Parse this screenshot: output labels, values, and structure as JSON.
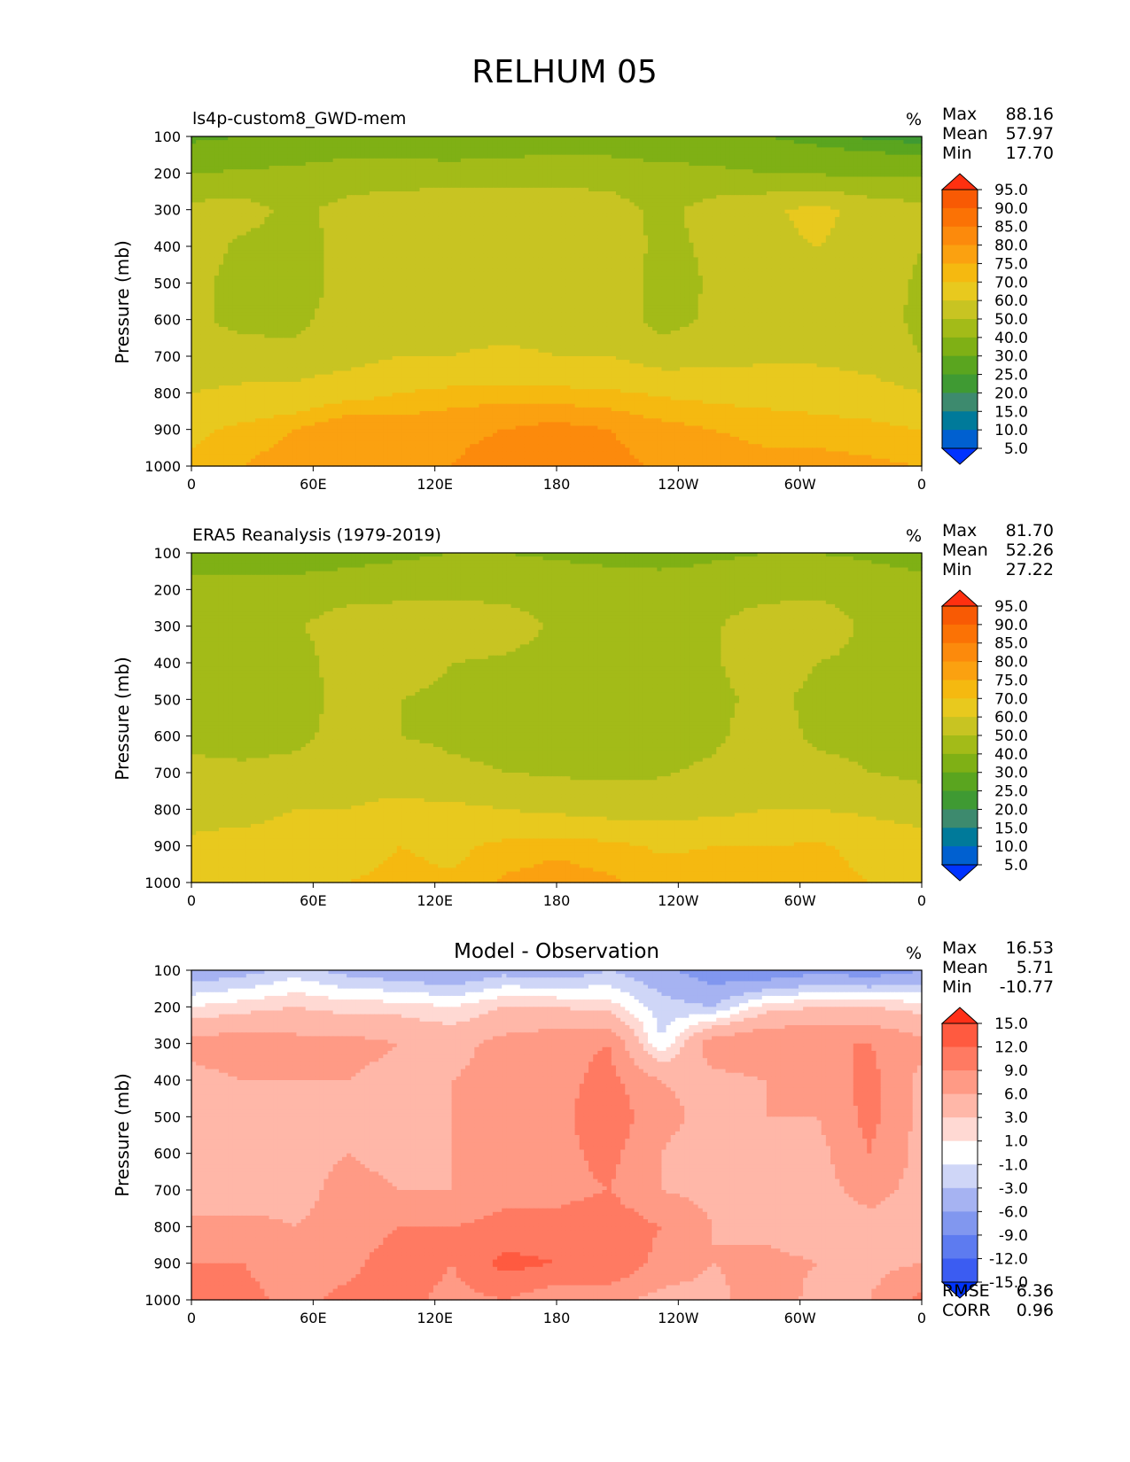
{
  "title": "RELHUM 05",
  "colors": {
    "full": [
      "#0033ff",
      "#0060d0",
      "#007a9a",
      "#3d8a6e",
      "#3f9a33",
      "#5aa51f",
      "#7fb015",
      "#a3bb18",
      "#c8c422",
      "#e8c91e",
      "#f5b910",
      "#fba110",
      "#fc8a0c",
      "#fb7205",
      "#f85a04",
      "#ff3010"
    ],
    "diff": [
      "#0033ff",
      "#3b5cf2",
      "#5d7bf0",
      "#8197ef",
      "#a6b3f2",
      "#cfd6f7",
      "#ffffff",
      "#ffd9d3",
      "#ffb7a8",
      "#ff9a85",
      "#ff7a62",
      "#ff5a40",
      "#ff3018"
    ]
  },
  "chart_data": [
    {
      "type": "contour",
      "panel": "model",
      "title": "ls4p-custom8_GWD-mem",
      "units": "%",
      "ylabel": "Pressure (mb)",
      "xticks": [
        "0",
        "60E",
        "120E",
        "180",
        "120W",
        "60W",
        "0"
      ],
      "yticks": [
        "100",
        "200",
        "300",
        "400",
        "500",
        "600",
        "700",
        "800",
        "900",
        "1000"
      ],
      "ylim": [
        100,
        1000
      ],
      "stats": [
        {
          "label": "Max",
          "value": "88.16"
        },
        {
          "label": "Mean",
          "value": "57.97"
        },
        {
          "label": "Min",
          "value": "17.70"
        }
      ],
      "colorbar_ticks": [
        "95.0",
        "90.0",
        "85.0",
        "80.0",
        "75.0",
        "70.0",
        "60.0",
        "50.0",
        "40.0",
        "30.0",
        "25.0",
        "20.0",
        "15.0",
        "10.0",
        "5.0"
      ],
      "levels": [
        5,
        10,
        15,
        20,
        25,
        30,
        40,
        50,
        60,
        70,
        75,
        80,
        85,
        90,
        95
      ],
      "colorset": "full",
      "rows": [
        [
          28,
          30,
          33,
          36,
          34,
          32,
          33,
          34,
          34,
          33,
          32,
          30,
          27,
          24,
          22
        ],
        [
          40,
          41,
          42,
          43,
          44,
          44,
          45,
          46,
          45,
          43,
          42,
          40,
          39,
          38,
          38
        ],
        [
          53,
          54,
          47,
          54,
          57,
          58,
          58,
          57,
          55,
          47,
          54,
          58,
          63,
          56,
          53
        ],
        [
          55,
          48,
          46,
          53,
          58,
          58,
          58,
          58,
          58,
          47,
          52,
          58,
          60,
          57,
          50
        ],
        [
          52,
          47,
          46,
          53,
          58,
          58,
          58,
          58,
          57,
          46,
          51,
          58,
          58,
          56,
          48
        ],
        [
          52,
          47,
          48,
          54,
          58,
          58,
          58,
          58,
          57,
          46,
          52,
          58,
          58,
          56,
          47
        ],
        [
          55,
          54,
          52,
          56,
          60,
          60,
          61,
          60,
          60,
          55,
          56,
          58,
          58,
          56,
          50
        ],
        [
          60,
          62,
          64,
          67,
          70,
          72,
          73,
          72,
          71,
          69,
          68,
          67,
          66,
          64,
          60
        ],
        [
          68,
          72,
          75,
          80,
          78,
          79,
          80,
          82,
          80,
          77,
          75,
          74,
          73,
          72,
          70
        ],
        [
          72,
          75,
          78,
          80,
          77,
          80,
          82,
          84,
          82,
          79,
          77,
          76,
          77,
          76,
          75
        ]
      ]
    },
    {
      "type": "contour",
      "panel": "observation",
      "title": "ERA5 Reanalysis (1979-2019)",
      "units": "%",
      "ylabel": "Pressure (mb)",
      "xticks": [
        "0",
        "60E",
        "120E",
        "180",
        "120W",
        "60W",
        "0"
      ],
      "yticks": [
        "100",
        "200",
        "300",
        "400",
        "500",
        "600",
        "700",
        "800",
        "900",
        "1000"
      ],
      "ylim": [
        100,
        1000
      ],
      "stats": [
        {
          "label": "Max",
          "value": "81.70"
        },
        {
          "label": "Mean",
          "value": "52.26"
        },
        {
          "label": "Min",
          "value": "27.22"
        }
      ],
      "colorbar_ticks": [
        "95.0",
        "90.0",
        "85.0",
        "80.0",
        "75.0",
        "70.0",
        "60.0",
        "50.0",
        "40.0",
        "30.0",
        "25.0",
        "20.0",
        "15.0",
        "10.0",
        "5.0"
      ],
      "levels": [
        5,
        10,
        15,
        20,
        25,
        30,
        40,
        50,
        60,
        70,
        75,
        80,
        85,
        90,
        95
      ],
      "colorset": "full",
      "rows": [
        [
          35,
          33,
          33,
          36,
          38,
          40,
          40,
          38,
          36,
          35,
          38,
          40,
          40,
          38,
          34
        ],
        [
          44,
          44,
          45,
          46,
          47,
          48,
          48,
          48,
          47,
          46,
          46,
          47,
          48,
          47,
          46
        ],
        [
          48,
          49,
          49,
          55,
          56,
          55,
          53,
          49,
          48,
          48,
          49,
          55,
          55,
          48,
          48
        ],
        [
          48,
          47,
          46,
          55,
          54,
          50,
          49,
          48,
          47,
          46,
          49,
          55,
          50,
          48,
          48
        ],
        [
          47,
          43,
          44,
          55,
          50,
          48,
          47,
          47,
          46,
          42,
          48,
          52,
          48,
          46,
          48
        ],
        [
          48,
          46,
          47,
          55,
          50,
          48,
          47,
          47,
          46,
          45,
          48,
          55,
          48,
          48,
          48
        ],
        [
          52,
          52,
          54,
          57,
          56,
          52,
          50,
          49,
          48,
          49,
          52,
          56,
          53,
          50,
          48
        ],
        [
          58,
          57,
          60,
          60,
          62,
          62,
          60,
          58,
          56,
          56,
          57,
          60,
          60,
          58,
          55
        ],
        [
          61,
          63,
          64,
          66,
          70,
          68,
          72,
          74,
          72,
          69,
          70,
          70,
          71,
          68,
          65
        ],
        [
          64,
          66,
          68,
          70,
          72,
          71,
          76,
          77,
          76,
          73,
          72,
          71,
          72,
          70,
          68
        ]
      ]
    },
    {
      "type": "contour",
      "panel": "difference",
      "title": "Model - Observation",
      "units": "%",
      "ylabel": "Pressure (mb)",
      "xticks": [
        "0",
        "60E",
        "120E",
        "180",
        "120W",
        "60W",
        "0"
      ],
      "yticks": [
        "100",
        "200",
        "300",
        "400",
        "500",
        "600",
        "700",
        "800",
        "900",
        "1000"
      ],
      "ylim": [
        100,
        1000
      ],
      "stats": [
        {
          "label": "Max",
          "value": "16.53"
        },
        {
          "label": "Mean",
          "value": "5.71"
        },
        {
          "label": "Min",
          "value": "-10.77"
        }
      ],
      "extra_stats": [
        {
          "label": "RMSE",
          "value": "6.36"
        },
        {
          "label": "CORR",
          "value": "0.96"
        }
      ],
      "colorbar_ticks": [
        "15.0",
        "12.0",
        "9.0",
        "6.0",
        "3.0",
        "1.0",
        "-1.0",
        "-3.0",
        "-6.0",
        "-9.0",
        "-12.0",
        "-15.0"
      ],
      "levels": [
        -15,
        -12,
        -9,
        -6,
        -3,
        -1,
        1,
        3,
        6,
        9,
        12,
        15
      ],
      "colorset": "diff",
      "rows": [
        [
          -5,
          -4,
          -2,
          -4,
          -5,
          -6,
          -4,
          -5,
          -3,
          -5,
          -8,
          -9,
          -7,
          -8,
          -6
        ],
        [
          1,
          2,
          3,
          2,
          2,
          1,
          3,
          3,
          2,
          -2,
          -3,
          2,
          3,
          3,
          2
        ],
        [
          7,
          8,
          7,
          7,
          6,
          5,
          7,
          8,
          9,
          -1,
          8,
          9,
          9,
          9,
          7
        ],
        [
          5,
          6,
          6,
          6,
          5,
          6,
          7,
          8,
          10,
          6,
          5,
          6,
          7,
          10,
          5
        ],
        [
          5,
          4,
          5,
          6,
          5,
          6,
          7,
          8,
          11,
          7,
          5,
          6,
          6,
          10,
          5
        ],
        [
          3,
          4,
          5,
          6,
          5,
          6,
          7,
          8,
          10,
          6,
          4,
          5,
          5,
          9,
          5
        ],
        [
          4,
          4,
          5,
          7,
          6,
          6,
          8,
          8,
          9,
          6,
          5,
          4,
          5,
          7,
          5
        ],
        [
          7,
          7,
          6,
          7,
          9,
          9,
          10,
          10,
          11,
          9,
          6,
          5,
          4,
          5,
          5
        ],
        [
          9,
          9,
          7,
          8,
          11,
          9,
          13,
          12,
          12,
          8,
          6,
          7,
          6,
          5,
          6
        ],
        [
          10,
          10,
          8,
          10,
          10,
          8,
          9,
          7,
          7,
          5,
          5,
          8,
          5,
          6,
          10
        ]
      ]
    }
  ]
}
